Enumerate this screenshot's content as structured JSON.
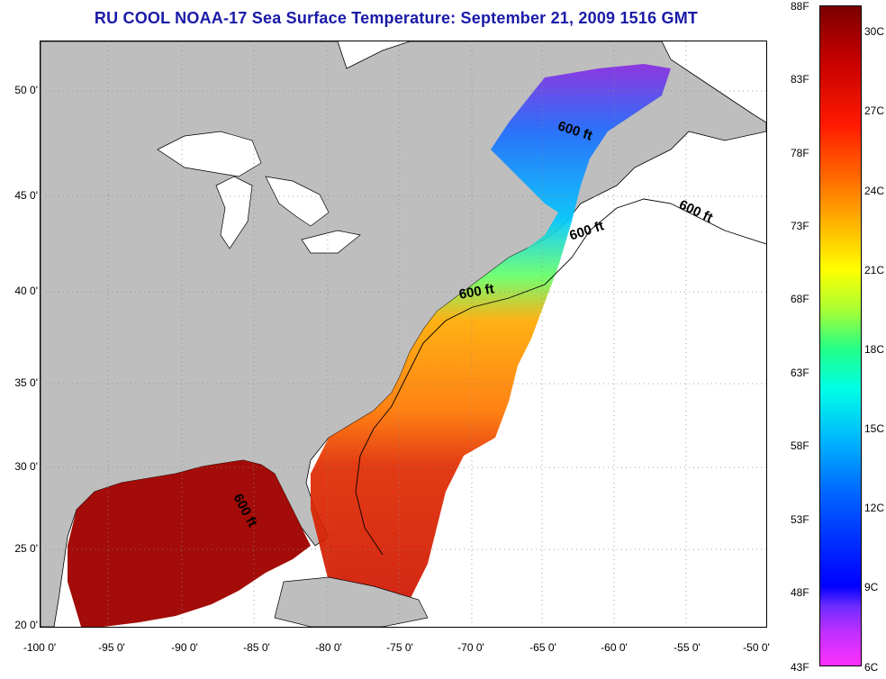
{
  "title": "RU COOL  NOAA-17  Sea Surface Temperature:  September 21, 2009 1516 GMT",
  "map": {
    "lat_labels": [
      "50 0'",
      "45 0'",
      "40 0'",
      "35 0'",
      "30 0'",
      "25 0'",
      "20 0'"
    ],
    "lon_labels": [
      "-100 0'",
      "-95 0'",
      "-90 0'",
      "-85 0'",
      "-80 0'",
      "-75 0'",
      "-70 0'",
      "-65 0'",
      "-60 0'",
      "-55 0'",
      "-50 0'"
    ],
    "isobath_label": "600 ft",
    "colors": {
      "land": "#bebebe",
      "no_data": "#ffffff",
      "accent_title": "#1a1aa8"
    }
  },
  "colorbar": {
    "fahrenheit_labels": [
      "88F",
      "83F",
      "78F",
      "73F",
      "68F",
      "63F",
      "58F",
      "53F",
      "48F",
      "43F"
    ],
    "celsius_labels": [
      "30C",
      "27C",
      "24C",
      "21C",
      "18C",
      "15C",
      "12C",
      "9C",
      "6C"
    ]
  }
}
